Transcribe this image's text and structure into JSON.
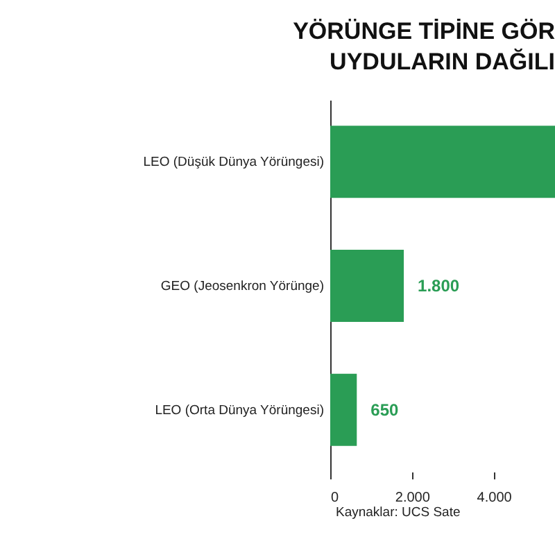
{
  "chart_data": {
    "type": "bar",
    "orientation": "horizontal",
    "title": [
      "YÖRÜNGE TİPİNE GÖR",
      "UYDULARIN DAĞILI"
    ],
    "categories": [
      "LEO (Düşük Dünya Yörüngesi)",
      "GEO (Jeosenkron Yörünge)",
      "LEO (Orta Dünya Yörüngesi)"
    ],
    "values": [
      5500,
      1800,
      650
    ],
    "value_labels": [
      null,
      "1.800",
      "650"
    ],
    "color": "#2a9d55",
    "xlim": [
      0,
      5500
    ],
    "xticks": [
      0,
      {
        "value": 2000,
        "label": "2.000"
      },
      {
        "value": 4000,
        "label": "4.000"
      }
    ],
    "grid": false,
    "annotations": [
      "Kaynaklar: UCS Sate"
    ]
  }
}
